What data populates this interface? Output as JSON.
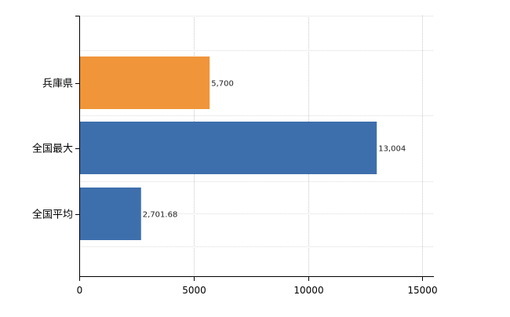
{
  "chart_data": {
    "type": "bar",
    "orientation": "horizontal",
    "categories": [
      "兵庫県",
      "全国最大",
      "全国平均"
    ],
    "values": [
      5700,
      13004,
      2701.68
    ],
    "value_labels": [
      "5,700",
      "13,004",
      "2,701.68"
    ],
    "bar_colors": [
      "#f0953a",
      "#3d6fad",
      "#3d6fad"
    ],
    "x_ticks": [
      0,
      5000,
      10000,
      15000
    ],
    "x_tick_labels": [
      "0",
      "5000",
      "10000",
      "15000"
    ],
    "xlim": [
      0,
      15500
    ],
    "grid": true,
    "title": "",
    "xlabel": "",
    "ylabel": ""
  }
}
